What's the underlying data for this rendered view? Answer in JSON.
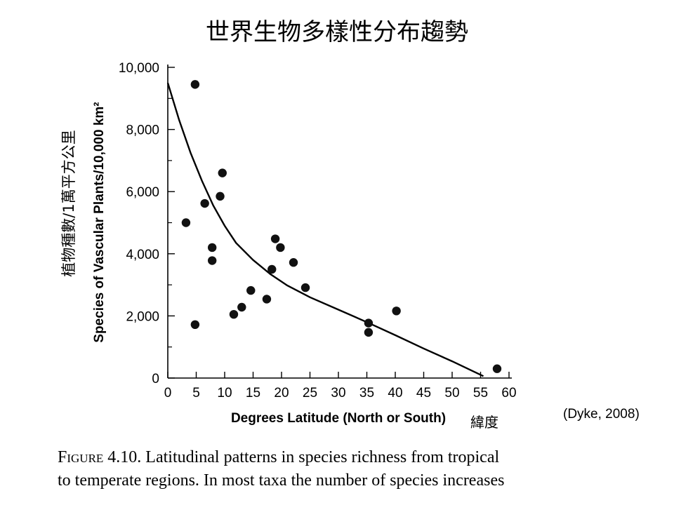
{
  "slide": {
    "title": "世界生物多樣性分布趨勢",
    "ylabel_cn": "植物種數/1萬平方公里",
    "xlabel_cn": "緯度",
    "citation": "(Dyke, 2008)"
  },
  "caption": {
    "figure_label": "Figure 4.10.",
    "lines": [
      "Latitudinal patterns in species richness from tropical",
      "to temperate regions. In most taxa the number of species increases"
    ]
  },
  "chart_data": {
    "type": "scatter",
    "title": "",
    "xlabel": "Degrees Latitude (North or South)",
    "ylabel": "Species of Vascular Plants/10,000 km²",
    "xlim": [
      0,
      60
    ],
    "ylim": [
      0,
      10000
    ],
    "x_ticks": [
      0,
      5,
      10,
      15,
      20,
      25,
      30,
      35,
      40,
      45,
      50,
      55,
      60
    ],
    "y_ticks": [
      0,
      2000,
      4000,
      6000,
      8000,
      10000
    ],
    "y_tick_labels": [
      "0",
      "2,000",
      "4,000",
      "6,000",
      "8,000",
      "10,000"
    ],
    "grid": false,
    "points": [
      {
        "x": 4.8,
        "y": 9450
      },
      {
        "x": 3.2,
        "y": 5000
      },
      {
        "x": 4.8,
        "y": 1720
      },
      {
        "x": 6.5,
        "y": 5620
      },
      {
        "x": 7.8,
        "y": 4200
      },
      {
        "x": 7.8,
        "y": 3780
      },
      {
        "x": 9.2,
        "y": 5850
      },
      {
        "x": 9.6,
        "y": 6600
      },
      {
        "x": 11.6,
        "y": 2050
      },
      {
        "x": 13.0,
        "y": 2280
      },
      {
        "x": 14.6,
        "y": 2820
      },
      {
        "x": 17.4,
        "y": 2540
      },
      {
        "x": 18.3,
        "y": 3500
      },
      {
        "x": 18.9,
        "y": 4480
      },
      {
        "x": 19.8,
        "y": 4200
      },
      {
        "x": 22.1,
        "y": 3720
      },
      {
        "x": 24.2,
        "y": 2910
      },
      {
        "x": 35.3,
        "y": 1770
      },
      {
        "x": 35.3,
        "y": 1470
      },
      {
        "x": 40.2,
        "y": 2160
      },
      {
        "x": 57.9,
        "y": 300
      }
    ],
    "trend_line": [
      {
        "x": 0,
        "y": 9500
      },
      {
        "x": 2,
        "y": 8300
      },
      {
        "x": 4,
        "y": 7250
      },
      {
        "x": 6,
        "y": 6350
      },
      {
        "x": 8,
        "y": 5550
      },
      {
        "x": 10,
        "y": 4900
      },
      {
        "x": 12,
        "y": 4350
      },
      {
        "x": 15,
        "y": 3800
      },
      {
        "x": 18,
        "y": 3350
      },
      {
        "x": 21,
        "y": 2980
      },
      {
        "x": 25,
        "y": 2600
      },
      {
        "x": 30,
        "y": 2200
      },
      {
        "x": 35,
        "y": 1800
      },
      {
        "x": 40,
        "y": 1380
      },
      {
        "x": 45,
        "y": 950
      },
      {
        "x": 50,
        "y": 540
      },
      {
        "x": 55.5,
        "y": 60
      }
    ]
  }
}
